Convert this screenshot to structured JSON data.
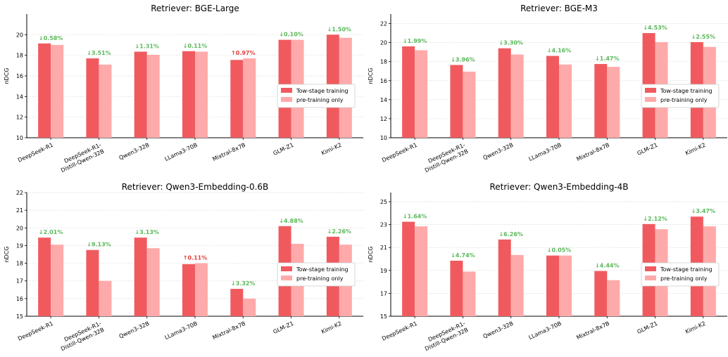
{
  "colors": {
    "series_full": "#f05a5e",
    "series_pre": "#ffaaaa",
    "delta_down": "#5cb85c",
    "delta_up": "#e04040",
    "grid": "#d9d9d9",
    "axis": "#000000"
  },
  "legend_labels": [
    "Tow-stage training",
    "pre-training only"
  ],
  "chart_data": [
    {
      "type": "bar",
      "title": "Retriever: BGE-Large",
      "ylabel": "nDCG",
      "ylim": [
        10,
        22
      ],
      "yticks": [
        10,
        12,
        14,
        16,
        18,
        20
      ],
      "grid": true,
      "legend_position": "right-middle",
      "categories": [
        "DeepSeek-R1",
        "DeepSeek-R1-\nDistill-Qwen-32B",
        "Qwen3-32B",
        "LLama3-70B",
        "Mixtral-8x7B",
        "GLM-Z1",
        "Kimi-K2"
      ],
      "series": [
        {
          "name": "Tow-stage training",
          "values": [
            19.15,
            17.7,
            18.35,
            18.4,
            17.55,
            19.5,
            20.0
          ]
        },
        {
          "name": "pre-training only",
          "values": [
            19.0,
            17.1,
            18.05,
            18.35,
            17.7,
            19.5,
            19.7
          ]
        }
      ],
      "deltas": [
        "↓0.58%",
        "↓3.51%",
        "↓1.31%",
        "↓0.11%",
        "↑0.97%",
        "↓0.10%",
        "↓1.50%"
      ]
    },
    {
      "type": "bar",
      "title": "Retriever: BGE-M3",
      "ylabel": "nDCG",
      "ylim": [
        10,
        23
      ],
      "yticks": [
        10,
        12,
        14,
        16,
        18,
        20,
        22
      ],
      "grid": true,
      "legend_position": "right-middle",
      "categories": [
        "DeepSeek-R1",
        "DeepSeek-R1-\nDistill-Qwen-32B",
        "Qwen3-32B",
        "LLama3-70B",
        "Mixtral-8x7B",
        "GLM-Z1",
        "Kimi-K2"
      ],
      "series": [
        {
          "name": "Tow-stage training",
          "values": [
            19.6,
            17.65,
            19.4,
            18.6,
            17.75,
            21.0,
            20.05
          ]
        },
        {
          "name": "pre-training only",
          "values": [
            19.2,
            16.95,
            18.75,
            17.7,
            17.45,
            20.05,
            19.55
          ]
        }
      ],
      "deltas": [
        "↓1.99%",
        "↓3.96%",
        "↓3.30%",
        "↓4.16%",
        "↓1.47%",
        "↓4.53%",
        "↓2.55%"
      ]
    },
    {
      "type": "bar",
      "title": "Retriever: Qwen3-Embedding-0.6B",
      "ylabel": "nDCG",
      "ylim": [
        15,
        22
      ],
      "yticks": [
        15,
        16,
        17,
        18,
        19,
        20,
        21,
        22
      ],
      "grid": true,
      "legend_position": "right-middle",
      "categories": [
        "DeepSeek-R1",
        "DeepSeek-R1-\nDistill-Qwen-32B",
        "Qwen3-32B",
        "LLama3-70B",
        "Mixtral-8x7B",
        "GLM-Z1",
        "Kimi-K2"
      ],
      "series": [
        {
          "name": "Tow-stage training",
          "values": [
            19.45,
            18.75,
            19.45,
            17.95,
            16.55,
            20.1,
            19.5
          ]
        },
        {
          "name": "pre-training only",
          "values": [
            19.05,
            17.0,
            18.85,
            18.0,
            16.0,
            19.1,
            19.05
          ]
        }
      ],
      "deltas": [
        "↓2.01%",
        "↓9.13%",
        "↓3.13%",
        "↑0.11%",
        "↓3.32%",
        "↓4.88%",
        "↓2.26%"
      ]
    },
    {
      "type": "bar",
      "title": "Retriever: Qwen3-Embedding-4B",
      "ylabel": "nDCG",
      "ylim": [
        15,
        25.8
      ],
      "yticks": [
        15,
        17,
        19,
        21,
        23,
        25
      ],
      "grid": true,
      "legend_position": "right-middle",
      "categories": [
        "DeepSeek-R1",
        "DeepSeek-R1-\nDistill-Qwen-32B",
        "Qwen3-32B",
        "LLama3-70B",
        "Mixtral-8x7B",
        "GLM-Z1",
        "Kimi-K2"
      ],
      "series": [
        {
          "name": "Tow-stage training",
          "values": [
            23.25,
            19.85,
            21.7,
            20.3,
            18.95,
            23.05,
            23.7
          ]
        },
        {
          "name": "pre-training only",
          "values": [
            22.85,
            18.9,
            20.35,
            20.3,
            18.15,
            22.6,
            22.85
          ]
        }
      ],
      "deltas": [
        "↓1.64%",
        "↓4.74%",
        "↓6.26%",
        "↓0.05%",
        "↓4.44%",
        "↓2.12%",
        "↓3.47%"
      ]
    }
  ]
}
